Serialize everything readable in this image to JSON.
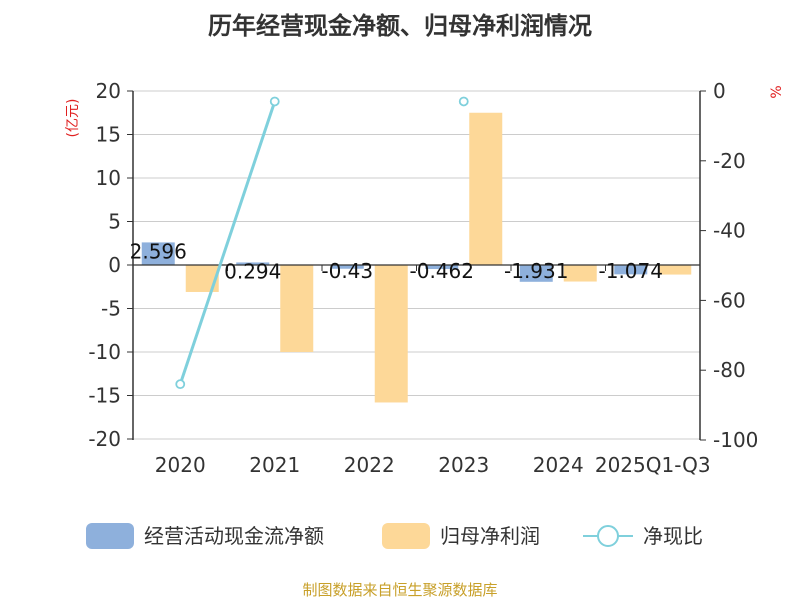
{
  "title": "历年经营现金净额、归母净利润情况",
  "left_unit": "(亿元)",
  "right_unit": "%",
  "source": "制图数据来自恒生聚源数据库",
  "legend": [
    {
      "name": "经营活动现金流净额",
      "color": "#8eb0dc",
      "kind": "bar"
    },
    {
      "name": "归母净利润",
      "color": "#fdd898",
      "kind": "bar"
    },
    {
      "name": "净现比",
      "color": "#7fd0dc",
      "kind": "line"
    }
  ],
  "chart_data": {
    "type": "bar",
    "title": "历年经营现金净额、归母净利润情况",
    "categories": [
      "2020",
      "2021",
      "2022",
      "2023",
      "2024",
      "2025Q1-Q3"
    ],
    "y_left": {
      "min": -20,
      "max": 20,
      "ticks": [
        20,
        15,
        10,
        5,
        0,
        -5,
        -10,
        -15,
        -20
      ],
      "label": "(亿元)"
    },
    "y_right": {
      "min": -100,
      "max": 0,
      "ticks": [
        0,
        -20,
        -40,
        -60,
        -80,
        -100
      ],
      "label": "%"
    },
    "series": [
      {
        "name": "经营活动现金流净额",
        "axis": "left",
        "color": "#8eb0dc",
        "values": [
          2.596,
          0.294,
          -0.43,
          -0.462,
          -1.931,
          -1.074
        ],
        "labels": [
          "2.596",
          "0.294",
          "-0.43",
          "-0.462",
          "-1.931",
          "-1.074"
        ]
      },
      {
        "name": "归母净利润",
        "axis": "left",
        "color": "#fdd898",
        "values": [
          -3.1,
          -10.0,
          -15.8,
          17.5,
          -1.9,
          -1.1
        ]
      },
      {
        "name": "净现比",
        "axis": "right",
        "type": "line",
        "color": "#7fd0dc",
        "values": [
          -84,
          -3,
          null,
          -3,
          null,
          null
        ]
      }
    ]
  }
}
